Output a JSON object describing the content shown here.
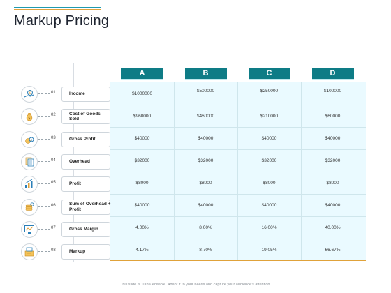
{
  "title": "Markup Pricing",
  "columns": [
    "A",
    "B",
    "C",
    "D"
  ],
  "rows": [
    {
      "num": "01",
      "label": "Income",
      "icon": "hand-money-icon",
      "values": [
        "$1000000",
        "$500000",
        "$250000",
        "$100000"
      ]
    },
    {
      "num": "02",
      "label": "Cost of Goods Sold",
      "icon": "money-bag-icon",
      "values": [
        "$960000",
        "$460000",
        "$210000",
        "$60000"
      ]
    },
    {
      "num": "03",
      "label": "Gross Profit",
      "icon": "coins-icon",
      "values": [
        "$40000",
        "$40000",
        "$40000",
        "$40000"
      ]
    },
    {
      "num": "04",
      "label": "Overhead",
      "icon": "documents-icon",
      "values": [
        "$32000",
        "$32000",
        "$32000",
        "$32000"
      ]
    },
    {
      "num": "05",
      "label": "Profit",
      "icon": "growth-chart-icon",
      "values": [
        "$8000",
        "$8000",
        "$8000",
        "$8000"
      ]
    },
    {
      "num": "06",
      "label": "Sum of Overhead + Profit",
      "icon": "stacked-coins-icon",
      "values": [
        "$40000",
        "$40000",
        "$40000",
        "$40000"
      ]
    },
    {
      "num": "07",
      "label": "Gross Margin",
      "icon": "monitor-chart-icon",
      "values": [
        "4.00%",
        "8.00%",
        "16.00%",
        "40.00%"
      ]
    },
    {
      "num": "08",
      "label": "Markup",
      "icon": "cash-register-icon",
      "values": [
        "4.17%",
        "8.70%",
        "19.05%",
        "66.67%"
      ]
    }
  ],
  "footer": "This slide is 100% editable. Adapt it to your needs and capture your audience's attention.",
  "colors": {
    "header": "#0e7c86",
    "accent": "#e0a23a",
    "table_bg": "#eafaff"
  }
}
